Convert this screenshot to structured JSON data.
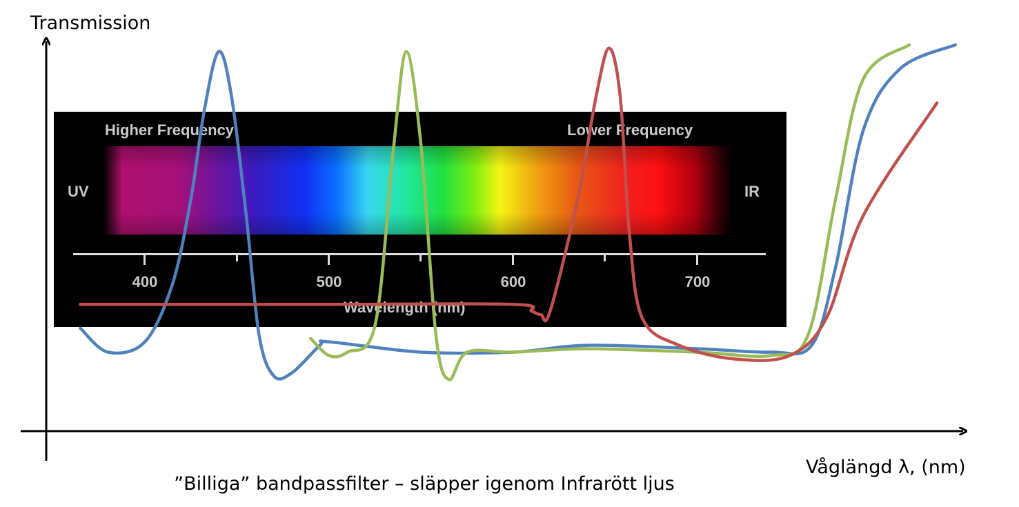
{
  "chart_data": {
    "type": "line",
    "ylabel": "Transmission",
    "xlabel": "Våglängd λ, (nm)",
    "caption": "”Billiga” bandpassfilter – släpper igenom Infrarött ljus",
    "series": [
      {
        "color": "#4f81bd",
        "points": [
          [
            365,
            0.17
          ],
          [
            380,
            0.1
          ],
          [
            400,
            0.13
          ],
          [
            415,
            0.3
          ],
          [
            425,
            0.55
          ],
          [
            432,
            0.8
          ],
          [
            440,
            0.98
          ],
          [
            447,
            0.85
          ],
          [
            455,
            0.5
          ],
          [
            462,
            0.15
          ],
          [
            470,
            0.03
          ],
          [
            480,
            0.04
          ],
          [
            495,
            0.12
          ],
          [
            500,
            0.13
          ],
          [
            550,
            0.1
          ],
          [
            600,
            0.1
          ],
          [
            640,
            0.12
          ],
          [
            700,
            0.11
          ],
          [
            740,
            0.1
          ],
          [
            762,
            0.12
          ],
          [
            775,
            0.35
          ],
          [
            790,
            0.75
          ],
          [
            810,
            0.93
          ],
          [
            840,
            1.0
          ]
        ]
      },
      {
        "color": "#9bbb59",
        "points": [
          [
            490,
            0.14
          ],
          [
            500,
            0.09
          ],
          [
            510,
            0.1
          ],
          [
            525,
            0.18
          ],
          [
            535,
            0.7
          ],
          [
            542,
            0.98
          ],
          [
            550,
            0.7
          ],
          [
            558,
            0.15
          ],
          [
            565,
            0.02
          ],
          [
            575,
            0.1
          ],
          [
            600,
            0.1
          ],
          [
            640,
            0.11
          ],
          [
            700,
            0.1
          ],
          [
            740,
            0.09
          ],
          [
            760,
            0.15
          ],
          [
            775,
            0.55
          ],
          [
            790,
            0.9
          ],
          [
            815,
            1.0
          ]
        ]
      },
      {
        "color": "#c0504d",
        "points": [
          [
            365,
            0.24
          ],
          [
            400,
            0.24
          ],
          [
            500,
            0.24
          ],
          [
            600,
            0.24
          ],
          [
            610,
            0.22
          ],
          [
            615,
            0.21
          ],
          [
            620,
            0.22
          ],
          [
            635,
            0.55
          ],
          [
            645,
            0.85
          ],
          [
            652,
            0.99
          ],
          [
            658,
            0.85
          ],
          [
            663,
            0.45
          ],
          [
            670,
            0.2
          ],
          [
            690,
            0.12
          ],
          [
            720,
            0.08
          ],
          [
            750,
            0.09
          ],
          [
            770,
            0.2
          ],
          [
            790,
            0.5
          ],
          [
            830,
            0.83
          ]
        ]
      }
    ],
    "xlim": [
      365,
      840
    ],
    "ylim": [
      0,
      1
    ]
  },
  "spectrum": {
    "higher": "Higher Frequency",
    "lower": "Lower Frequency",
    "uv": "UV",
    "ir": "IR",
    "wavelength_label": "Wavelength (nm)",
    "ticks": [
      "400",
      "500",
      "600",
      "700"
    ]
  }
}
